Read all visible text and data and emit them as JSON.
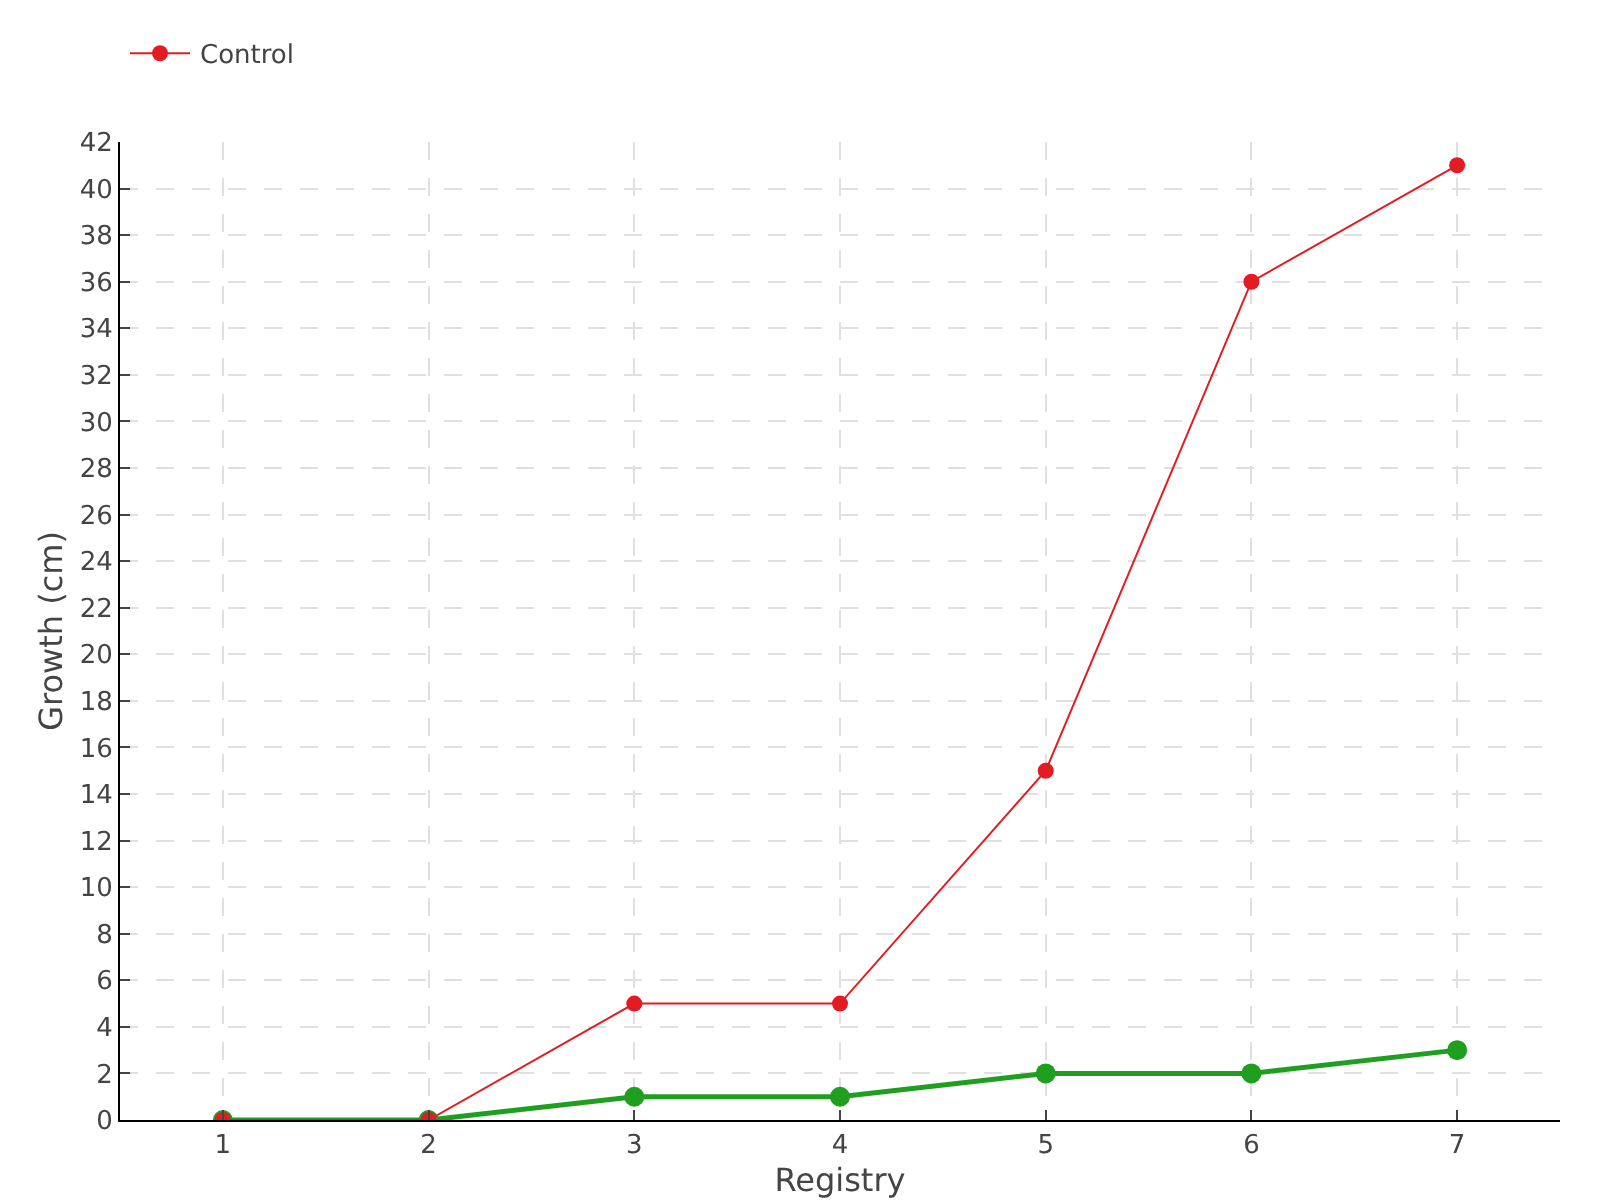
{
  "chart_data": {
    "type": "line",
    "xlabel": "Registry",
    "ylabel": "Growth (cm)",
    "x": [
      1,
      2,
      3,
      4,
      5,
      6,
      7
    ],
    "series": [
      {
        "color": "#1f9e1f",
        "values": [
          0,
          0,
          1,
          1,
          2,
          2,
          3
        ]
      },
      {
        "name": "Control",
        "color": "#e31b23",
        "values": [
          0,
          0,
          5,
          5,
          15,
          36,
          41
        ]
      }
    ],
    "xlim": [
      0.5,
      7.5
    ],
    "xticks": [
      1,
      2,
      3,
      4,
      5,
      6,
      7
    ],
    "ylim": [
      0,
      42
    ],
    "yticks": [
      0,
      2,
      4,
      6,
      8,
      10,
      12,
      14,
      16,
      18,
      20,
      22,
      24,
      26,
      28,
      30,
      32,
      34,
      36,
      38,
      40,
      42
    ],
    "grid": true,
    "legend": "top left",
    "marker": "circle",
    "line_style": "solid"
  }
}
